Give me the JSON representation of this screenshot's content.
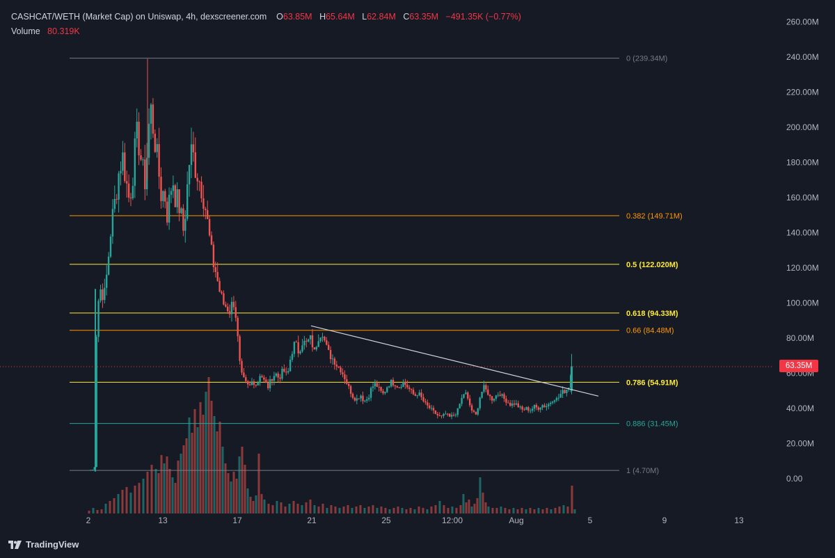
{
  "legend": {
    "title": "CASHCAT/WETH (Market Cap) on Uniswap, 4h, dexscreener.com",
    "o_label": "O",
    "o_value": "63.85M",
    "h_label": "H",
    "h_value": "65.64M",
    "l_label": "L",
    "l_value": "62.84M",
    "c_label": "C",
    "c_value": "63.35M",
    "change": "−491.35K (−0.77%)",
    "volume_label": "Volume",
    "volume_value": "80.319K"
  },
  "brand": {
    "name": "TradingView",
    "logo_icon": "tradingview-logo-icon"
  },
  "price_tag": "63.35M",
  "colors": {
    "background": "#161a25",
    "up": "#26a69a",
    "down": "#ef5350",
    "trendline": "#d1d4dc"
  },
  "chart_data": {
    "type": "candlestick",
    "y_axis": {
      "min": 0,
      "max": 260,
      "unit": "M",
      "ticks": [
        "260.00M",
        "240.00M",
        "220.00M",
        "200.00M",
        "180.00M",
        "160.00M",
        "140.00M",
        "120.00M",
        "100.00M",
        "80.00M",
        "60.00M",
        "40.00M",
        "20.00M",
        "0.00"
      ]
    },
    "x_axis": {
      "ticks": [
        "2",
        "13",
        "17",
        "21",
        "25",
        "12:00",
        "Aug",
        "5",
        "9",
        "13"
      ]
    },
    "fib_levels": [
      {
        "label": "0 (239.34M)",
        "value": 239.34,
        "color": "#787b86",
        "bold": false
      },
      {
        "label": "0.382 (149.71M)",
        "value": 149.71,
        "color": "#ff9800",
        "bold": false
      },
      {
        "label": "0.5 (122.020M)",
        "value": 122.02,
        "color": "#ffeb3b",
        "bold": true
      },
      {
        "label": "0.618 (94.33M)",
        "value": 94.33,
        "color": "#ffeb3b",
        "bold": true
      },
      {
        "label": "0.66 (84.48M)",
        "value": 84.48,
        "color": "#ff9800",
        "bold": false
      },
      {
        "label": "0.786 (54.91M)",
        "value": 54.91,
        "color": "#ffeb3b",
        "bold": true
      },
      {
        "label": "0.886 (31.45M)",
        "value": 31.45,
        "color": "#26a69a",
        "bold": false
      },
      {
        "label": "1 (4.70M)",
        "value": 4.7,
        "color": "#787b86",
        "bold": false
      }
    ],
    "last_price": 63.35,
    "trendline": {
      "from": {
        "x": 447,
        "value": 87
      },
      "to": {
        "x": 860,
        "value": 47
      }
    },
    "close_path": [
      [
        130,
        5
      ],
      [
        134,
        5
      ],
      [
        137,
        8
      ],
      [
        139,
        95
      ],
      [
        144,
        108
      ],
      [
        150,
        104
      ],
      [
        154,
        118
      ],
      [
        160,
        145
      ],
      [
        166,
        160
      ],
      [
        171,
        175
      ],
      [
        176,
        184
      ],
      [
        181,
        170
      ],
      [
        186,
        158
      ],
      [
        191,
        174
      ],
      [
        196,
        196
      ],
      [
        200,
        190
      ],
      [
        204,
        178
      ],
      [
        208,
        168
      ],
      [
        212,
        188
      ],
      [
        216,
        213
      ],
      [
        220,
        200
      ],
      [
        224,
        188
      ],
      [
        228,
        175
      ],
      [
        232,
        160
      ],
      [
        236,
        165
      ],
      [
        240,
        150
      ],
      [
        244,
        160
      ],
      [
        248,
        172
      ],
      [
        252,
        160
      ],
      [
        256,
        158
      ],
      [
        260,
        150
      ],
      [
        264,
        140
      ],
      [
        268,
        160
      ],
      [
        272,
        180
      ],
      [
        276,
        188
      ],
      [
        280,
        178
      ],
      [
        285,
        172
      ],
      [
        290,
        165
      ],
      [
        295,
        155
      ],
      [
        300,
        140
      ],
      [
        305,
        125
      ],
      [
        310,
        118
      ],
      [
        315,
        108
      ],
      [
        320,
        100
      ],
      [
        325,
        98
      ],
      [
        330,
        95
      ],
      [
        335,
        102
      ],
      [
        340,
        90
      ],
      [
        343,
        72
      ],
      [
        346,
        60
      ],
      [
        352,
        55
      ],
      [
        358,
        52
      ],
      [
        363,
        56
      ],
      [
        369,
        53
      ],
      [
        374,
        60
      ],
      [
        379,
        56
      ],
      [
        385,
        52
      ],
      [
        390,
        57
      ],
      [
        396,
        60
      ],
      [
        401,
        57
      ],
      [
        407,
        62
      ],
      [
        413,
        58
      ],
      [
        418,
        70
      ],
      [
        424,
        78
      ],
      [
        429,
        72
      ],
      [
        435,
        78
      ],
      [
        440,
        77
      ],
      [
        446,
        80
      ],
      [
        452,
        72
      ],
      [
        457,
        80
      ],
      [
        463,
        84
      ],
      [
        468,
        76
      ],
      [
        474,
        70
      ],
      [
        479,
        68
      ],
      [
        485,
        64
      ],
      [
        490,
        62
      ],
      [
        496,
        57
      ],
      [
        501,
        52
      ],
      [
        507,
        47
      ],
      [
        512,
        45
      ],
      [
        518,
        48
      ],
      [
        523,
        44
      ],
      [
        529,
        46
      ],
      [
        534,
        52
      ],
      [
        540,
        54
      ],
      [
        546,
        50
      ],
      [
        551,
        48
      ],
      [
        557,
        53
      ],
      [
        562,
        55
      ],
      [
        568,
        54
      ],
      [
        573,
        52
      ],
      [
        579,
        55
      ],
      [
        584,
        53
      ],
      [
        590,
        50
      ],
      [
        596,
        47
      ],
      [
        601,
        49
      ],
      [
        607,
        45
      ],
      [
        612,
        42
      ],
      [
        618,
        40
      ],
      [
        623,
        38
      ],
      [
        629,
        36
      ],
      [
        635,
        35
      ],
      [
        640,
        37
      ],
      [
        646,
        35
      ],
      [
        651,
        36
      ],
      [
        657,
        38
      ],
      [
        662,
        44
      ],
      [
        668,
        50
      ],
      [
        673,
        44
      ],
      [
        679,
        38
      ],
      [
        684,
        36
      ],
      [
        690,
        47
      ],
      [
        695,
        52
      ],
      [
        701,
        49
      ],
      [
        706,
        45
      ],
      [
        712,
        47
      ],
      [
        718,
        49
      ],
      [
        723,
        46
      ],
      [
        729,
        44
      ],
      [
        734,
        42
      ],
      [
        740,
        43
      ],
      [
        745,
        41
      ],
      [
        751,
        39
      ],
      [
        756,
        40
      ],
      [
        762,
        39
      ],
      [
        768,
        41
      ],
      [
        773,
        40
      ],
      [
        779,
        42
      ],
      [
        784,
        41
      ],
      [
        790,
        43
      ],
      [
        796,
        46
      ],
      [
        801,
        45
      ],
      [
        807,
        49
      ],
      [
        812,
        50
      ],
      [
        817,
        52
      ],
      [
        822,
        63.4
      ]
    ],
    "volume_bars": [
      [
        128,
        4
      ],
      [
        134,
        8
      ],
      [
        140,
        5
      ],
      [
        146,
        6
      ],
      [
        152,
        14
      ],
      [
        158,
        18
      ],
      [
        164,
        22
      ],
      [
        170,
        28
      ],
      [
        176,
        34
      ],
      [
        182,
        38
      ],
      [
        188,
        30
      ],
      [
        194,
        40
      ],
      [
        200,
        44
      ],
      [
        206,
        50
      ],
      [
        212,
        60
      ],
      [
        218,
        70
      ],
      [
        224,
        64
      ],
      [
        228,
        58
      ],
      [
        232,
        84
      ],
      [
        236,
        72
      ],
      [
        240,
        82
      ],
      [
        244,
        64
      ],
      [
        248,
        52
      ],
      [
        252,
        44
      ],
      [
        256,
        76
      ],
      [
        260,
        86
      ],
      [
        264,
        98
      ],
      [
        268,
        108
      ],
      [
        272,
        138
      ],
      [
        276,
        116
      ],
      [
        280,
        150
      ],
      [
        284,
        124
      ],
      [
        288,
        160
      ],
      [
        292,
        142
      ],
      [
        296,
        175
      ],
      [
        300,
        196
      ],
      [
        304,
        162
      ],
      [
        308,
        140
      ],
      [
        312,
        118
      ],
      [
        316,
        132
      ],
      [
        320,
        96
      ],
      [
        324,
        72
      ],
      [
        328,
        58
      ],
      [
        332,
        46
      ],
      [
        336,
        60
      ],
      [
        340,
        50
      ],
      [
        344,
        82
      ],
      [
        348,
        96
      ],
      [
        352,
        70
      ],
      [
        356,
        36
      ],
      [
        360,
        24
      ],
      [
        364,
        18
      ],
      [
        368,
        26
      ],
      [
        372,
        86
      ],
      [
        376,
        28
      ],
      [
        380,
        20
      ],
      [
        386,
        14
      ],
      [
        392,
        12
      ],
      [
        398,
        18
      ],
      [
        404,
        16
      ],
      [
        410,
        10
      ],
      [
        416,
        14
      ],
      [
        422,
        18
      ],
      [
        428,
        14
      ],
      [
        434,
        12
      ],
      [
        440,
        16
      ],
      [
        446,
        20
      ],
      [
        452,
        12
      ],
      [
        458,
        10
      ],
      [
        464,
        14
      ],
      [
        470,
        8
      ],
      [
        476,
        12
      ],
      [
        482,
        10
      ],
      [
        488,
        8
      ],
      [
        494,
        10
      ],
      [
        500,
        12
      ],
      [
        506,
        8
      ],
      [
        512,
        10
      ],
      [
        518,
        12
      ],
      [
        524,
        8
      ],
      [
        530,
        10
      ],
      [
        536,
        12
      ],
      [
        542,
        8
      ],
      [
        548,
        10
      ],
      [
        554,
        8
      ],
      [
        560,
        6
      ],
      [
        566,
        8
      ],
      [
        572,
        10
      ],
      [
        578,
        8
      ],
      [
        584,
        6
      ],
      [
        590,
        8
      ],
      [
        596,
        6
      ],
      [
        602,
        10
      ],
      [
        608,
        8
      ],
      [
        614,
        6
      ],
      [
        620,
        10
      ],
      [
        626,
        12
      ],
      [
        632,
        18
      ],
      [
        638,
        12
      ],
      [
        644,
        8
      ],
      [
        650,
        10
      ],
      [
        656,
        8
      ],
      [
        662,
        12
      ],
      [
        666,
        28
      ],
      [
        670,
        16
      ],
      [
        674,
        20
      ],
      [
        678,
        10
      ],
      [
        682,
        14
      ],
      [
        686,
        22
      ],
      [
        690,
        52
      ],
      [
        694,
        30
      ],
      [
        698,
        16
      ],
      [
        702,
        10
      ],
      [
        708,
        8
      ],
      [
        714,
        8
      ],
      [
        720,
        10
      ],
      [
        726,
        8
      ],
      [
        732,
        6
      ],
      [
        738,
        8
      ],
      [
        744,
        6
      ],
      [
        750,
        8
      ],
      [
        756,
        6
      ],
      [
        762,
        8
      ],
      [
        768,
        6
      ],
      [
        774,
        8
      ],
      [
        780,
        6
      ],
      [
        786,
        8
      ],
      [
        792,
        6
      ],
      [
        798,
        8
      ],
      [
        804,
        10
      ],
      [
        810,
        12
      ],
      [
        816,
        10
      ],
      [
        822,
        40
      ],
      [
        826,
        6
      ]
    ]
  }
}
